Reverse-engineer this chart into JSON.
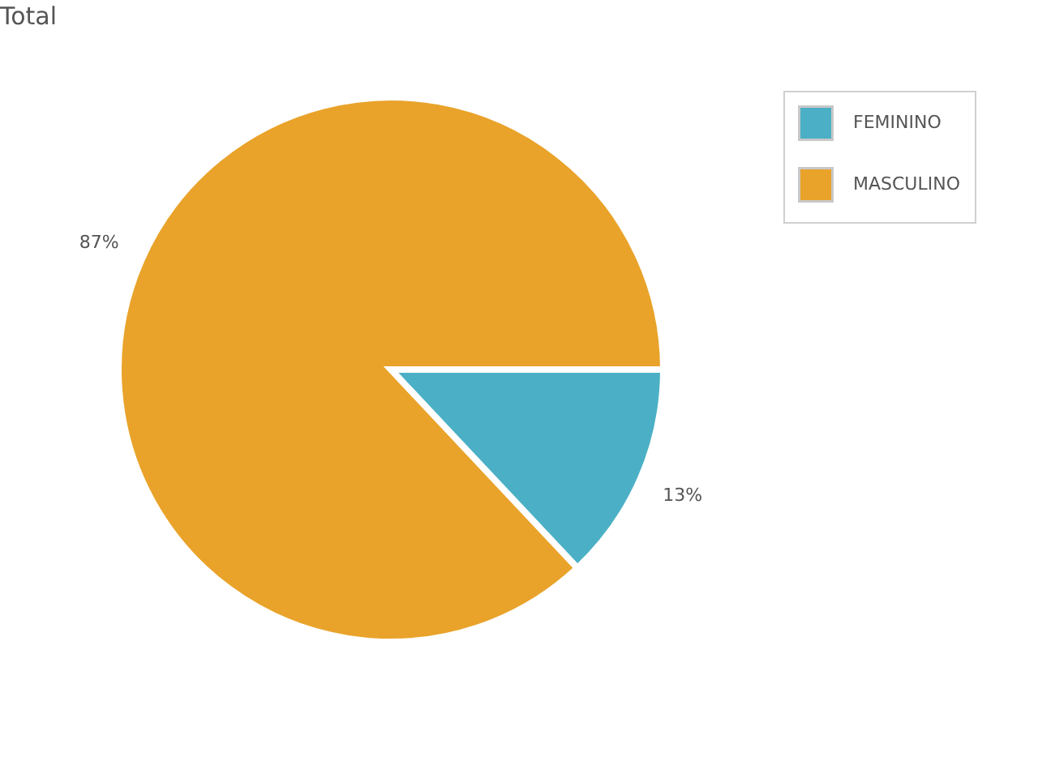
{
  "chart_data": {
    "type": "pie",
    "title": "Total",
    "categories": [
      "FEMININO",
      "MASCULINO"
    ],
    "values": [
      13,
      87
    ],
    "colors": [
      "#4bb0c5",
      "#e9a32a"
    ],
    "value_labels": [
      "13%",
      "87%"
    ],
    "legend": "top right"
  }
}
